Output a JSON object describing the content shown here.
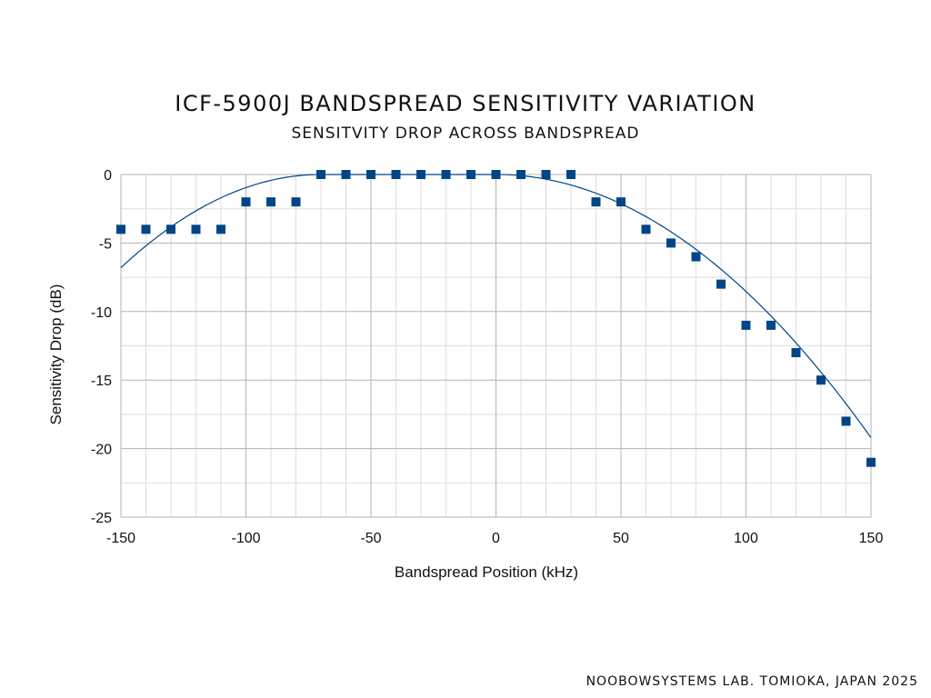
{
  "chart_data": {
    "type": "scatter",
    "title": "ICF-5900J BANDSPREAD SENSITIVITY VARIATION",
    "subtitle": "SENSITVITY DROP ACROSS BANDSPREAD",
    "xlabel": "Bandspread Position (kHz)",
    "ylabel": "Sensitivity Drop (dB)",
    "xlim": [
      -150,
      150
    ],
    "ylim": [
      -25,
      0
    ],
    "xticks": [
      "-150",
      "-100",
      "-50",
      "0",
      "50",
      "100",
      "150"
    ],
    "yticks": [
      "0",
      "-5",
      "-10",
      "-15",
      "-20",
      "-25"
    ],
    "grid": true,
    "legend": "none",
    "series": [
      {
        "marker": "square",
        "color": "#004586",
        "points": [
          [
            -150,
            -4
          ],
          [
            -140,
            -4
          ],
          [
            -130,
            -4
          ],
          [
            -120,
            -4
          ],
          [
            -110,
            -4
          ],
          [
            -100,
            -2
          ],
          [
            -90,
            -2
          ],
          [
            -80,
            -2
          ],
          [
            -70,
            0
          ],
          [
            -60,
            0
          ],
          [
            -50,
            0
          ],
          [
            -40,
            0
          ],
          [
            -30,
            0
          ],
          [
            -20,
            0
          ],
          [
            -10,
            0
          ],
          [
            0,
            0
          ],
          [
            10,
            0
          ],
          [
            20,
            0
          ],
          [
            30,
            0
          ],
          [
            40,
            -2
          ],
          [
            50,
            -2
          ],
          [
            60,
            -4
          ],
          [
            70,
            -5
          ],
          [
            80,
            -6
          ],
          [
            90,
            -8
          ],
          [
            100,
            -11
          ],
          [
            110,
            -11
          ],
          [
            120,
            -13
          ],
          [
            130,
            -15
          ],
          [
            140,
            -18
          ],
          [
            150,
            -21
          ]
        ]
      }
    ],
    "trendline": {
      "type": "polynomial",
      "color": "#004586",
      "points": [
        [
          -150,
          -6.8
        ],
        [
          -70,
          0
        ],
        [
          0,
          0
        ],
        [
          150,
          -19.2
        ]
      ]
    }
  },
  "footer": "NOOBOWSYSTEMS LAB. TOMIOKA, JAPAN 2025"
}
